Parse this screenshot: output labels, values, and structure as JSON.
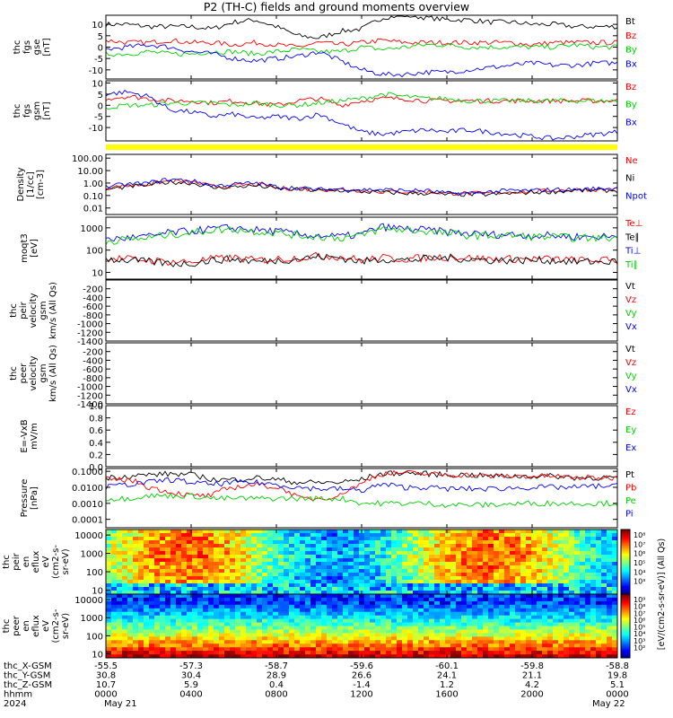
{
  "title": "P2 (TH-C) fields and ground moments overview",
  "colors": {
    "black": "#000000",
    "red": "#ff0000",
    "green": "#00d000",
    "blue": "#0000ff",
    "yellow": "#ffff00",
    "axis": "#000000"
  },
  "chart_data": [
    {
      "type": "line",
      "panel": "fgs-gse",
      "ylabel": [
        "thc",
        "fgs",
        "gse",
        "[nT]"
      ],
      "yticks": [
        "10",
        "5",
        "0",
        "-5",
        "-10"
      ],
      "ylim": [
        -14,
        14
      ],
      "series": [
        {
          "name": "Bt",
          "color": "black",
          "values": [
            10,
            10,
            9,
            9,
            9,
            8,
            11,
            12,
            9,
            5,
            4,
            7,
            8,
            13,
            14,
            13,
            12,
            12,
            11,
            11,
            10,
            10,
            9,
            9,
            9
          ]
        },
        {
          "name": "Bz",
          "color": "red",
          "values": [
            3,
            2,
            2,
            3,
            2,
            2,
            1,
            2,
            1,
            0,
            2,
            1,
            2,
            3,
            2,
            2,
            2,
            2,
            2,
            2,
            1,
            2,
            2,
            2,
            2
          ]
        },
        {
          "name": "By",
          "color": "green",
          "values": [
            -3,
            -3,
            -2,
            -3,
            -3,
            -2,
            -2,
            -3,
            -2,
            -1,
            -2,
            -2,
            0,
            -1,
            0,
            1,
            1,
            0,
            0,
            0,
            0,
            0,
            1,
            0,
            0
          ]
        },
        {
          "name": "Bx",
          "color": "blue",
          "values": [
            -1,
            0,
            1,
            0,
            -2,
            -3,
            -5,
            -6,
            -5,
            -4,
            -2,
            -6,
            -10,
            -12,
            -12,
            -11,
            -11,
            -10,
            -9,
            -8,
            -7,
            -8,
            -8,
            -7,
            -7
          ]
        }
      ],
      "legend": [
        "Bt",
        "Bz",
        "By",
        "Bx"
      ]
    },
    {
      "type": "line",
      "panel": "fgs-gsm",
      "ylabel": [
        "thc",
        "fgs",
        "gsm",
        "[nT]"
      ],
      "yticks": [
        "10",
        "5",
        "0",
        "-5",
        "-10"
      ],
      "ylim": [
        -16,
        11
      ],
      "series": [
        {
          "name": "Bz",
          "color": "red",
          "values": [
            3,
            4,
            3,
            2,
            2,
            1,
            2,
            1,
            0,
            2,
            3,
            0,
            2,
            3,
            3,
            2,
            2,
            2,
            2,
            2,
            2,
            2,
            2,
            2,
            2
          ]
        },
        {
          "name": "By",
          "color": "green",
          "values": [
            -1,
            0,
            0,
            1,
            1,
            1,
            0,
            1,
            0,
            0,
            1,
            2,
            3,
            5,
            4,
            3,
            3,
            2,
            2,
            2,
            2,
            2,
            2,
            2,
            2
          ]
        },
        {
          "name": "Bx",
          "color": "blue",
          "values": [
            5,
            6,
            4,
            -2,
            -3,
            -5,
            -4,
            -6,
            -5,
            -6,
            -4,
            -8,
            -12,
            -13,
            -12,
            -11,
            -12,
            -11,
            -12,
            -13,
            -14,
            -15,
            -14,
            -13,
            -12
          ]
        }
      ],
      "legend": [
        "Bz",
        "By",
        "Bx"
      ]
    },
    {
      "type": "line",
      "panel": "density",
      "yscale": "log",
      "ylabel": [
        "Density",
        "[1/cc]",
        "[cm-3]"
      ],
      "yticks": [
        "100.00",
        "10.00",
        "1.00",
        "0.10",
        "0.01"
      ],
      "ylim": [
        0.003,
        200
      ],
      "series": [
        {
          "name": "Ne",
          "color": "red",
          "values": [
            0.4,
            0.6,
            0.8,
            1.5,
            1.2,
            0.5,
            0.6,
            0.8,
            0.4,
            0.35,
            0.3,
            0.3,
            0.25,
            0.2,
            0.2,
            0.2,
            0.15,
            0.15,
            0.15,
            0.2,
            0.2,
            0.25,
            0.3,
            0.3,
            0.3
          ]
        },
        {
          "name": "Ni",
          "color": "black",
          "values": [
            0.3,
            0.5,
            0.7,
            1.2,
            1.0,
            0.4,
            0.5,
            0.6,
            0.35,
            0.3,
            0.25,
            0.25,
            0.2,
            0.18,
            0.15,
            0.15,
            0.12,
            0.12,
            0.12,
            0.15,
            0.18,
            0.2,
            0.25,
            0.25,
            0.25
          ]
        },
        {
          "name": "Npot",
          "color": "blue",
          "values": [
            0.5,
            0.8,
            1.0,
            2.0,
            1.5,
            0.6,
            0.8,
            1.0,
            0.5,
            0.4,
            0.3,
            0.35,
            0.3,
            0.3,
            0.25,
            0.25,
            0.15,
            0.15,
            0.2,
            0.25,
            0.25,
            0.3,
            0.3,
            0.35,
            0.4
          ]
        }
      ],
      "legend": [
        "Ne",
        "Ni",
        "Npot"
      ]
    },
    {
      "type": "line",
      "panel": "temperature",
      "yscale": "log",
      "ylabel": [
        "moqt3",
        "[eV]"
      ],
      "yticks": [
        "1000",
        "100",
        "10"
      ],
      "ylim": [
        5,
        3000
      ],
      "series": [
        {
          "name": "Te⊥",
          "color": "red",
          "values": [
            45,
            40,
            35,
            30,
            30,
            40,
            45,
            35,
            40,
            45,
            55,
            50,
            35,
            45,
            40,
            45,
            50,
            45,
            40,
            40,
            40,
            40,
            35,
            35,
            35
          ]
        },
        {
          "name": "Te∥",
          "color": "black",
          "values": [
            40,
            35,
            30,
            25,
            25,
            35,
            40,
            30,
            35,
            40,
            50,
            45,
            30,
            40,
            35,
            40,
            45,
            40,
            35,
            35,
            35,
            35,
            30,
            30,
            30
          ]
        },
        {
          "name": "Ti⊥",
          "color": "blue",
          "values": [
            300,
            350,
            400,
            600,
            700,
            900,
            1000,
            800,
            700,
            500,
            450,
            400,
            500,
            1100,
            900,
            800,
            650,
            550,
            500,
            500,
            450,
            450,
            400,
            400,
            400
          ]
        },
        {
          "name": "Ti∥",
          "color": "green",
          "values": [
            250,
            300,
            350,
            500,
            600,
            800,
            850,
            700,
            600,
            450,
            400,
            350,
            450,
            900,
            800,
            700,
            550,
            450,
            450,
            450,
            400,
            400,
            350,
            350,
            350
          ]
        }
      ],
      "legend": [
        "Te⊥",
        "Te∥",
        "Ti⊥",
        "Ti∥"
      ]
    },
    {
      "type": "line",
      "panel": "peir-velocity",
      "ylabel": [
        "thc",
        "peir",
        "velocity",
        "gsm",
        "km/s (All Qs)"
      ],
      "yticks": [
        "-200",
        "-400",
        "-600",
        "-800",
        "-1000",
        "-1200",
        "-1400"
      ],
      "ylim": [
        -1400,
        0
      ],
      "series": [],
      "legend": [
        "Vt",
        "Vz",
        "Vy",
        "Vx"
      ]
    },
    {
      "type": "line",
      "panel": "peer-velocity",
      "ylabel": [
        "thc",
        "peer",
        "velocity",
        "gsm",
        "km/s (All Qs)"
      ],
      "yticks": [
        "-200",
        "-400",
        "-600",
        "-800",
        "-1000",
        "-1200",
        "-1400"
      ],
      "ylim": [
        -1400,
        0
      ],
      "series": [],
      "legend": [
        "Vt",
        "Vz",
        "Vy",
        "Vx"
      ]
    },
    {
      "type": "line",
      "panel": "efield",
      "ylabel": [
        "E=-VxB",
        "mV/m"
      ],
      "yticks": [
        "1.0",
        "0.8",
        "0.6",
        "0.4",
        "0.2",
        "0.0"
      ],
      "ylim": [
        0,
        1
      ],
      "series": [],
      "legend": [
        "Ez",
        "Ey",
        "Ex"
      ]
    },
    {
      "type": "line",
      "panel": "pressure",
      "yscale": "log",
      "ylabel": [
        "Pressure",
        "[nPa]"
      ],
      "yticks": [
        "0.1000",
        "0.0100",
        "0.0010",
        "0.0001"
      ],
      "ylim": [
        3e-05,
        0.15
      ],
      "series": [
        {
          "name": "Pt",
          "color": "black",
          "values": [
            0.04,
            0.05,
            0.06,
            0.07,
            0.06,
            0.03,
            0.03,
            0.04,
            0.03,
            0.02,
            0.02,
            0.02,
            0.03,
            0.07,
            0.08,
            0.07,
            0.06,
            0.06,
            0.05,
            0.05,
            0.05,
            0.05,
            0.04,
            0.04,
            0.04
          ]
        },
        {
          "name": "Pb",
          "color": "red",
          "values": [
            0.03,
            0.03,
            0.01,
            0.005,
            0.003,
            0.003,
            0.01,
            0.015,
            0.01,
            0.002,
            0.002,
            0.003,
            0.015,
            0.07,
            0.08,
            0.07,
            0.06,
            0.06,
            0.05,
            0.05,
            0.05,
            0.05,
            0.04,
            0.04,
            0.04
          ]
        },
        {
          "name": "Pe",
          "color": "green",
          "values": [
            0.002,
            0.002,
            0.003,
            0.003,
            0.003,
            0.002,
            0.002,
            0.002,
            0.002,
            0.002,
            0.002,
            0.002,
            0.001,
            0.001,
            0.001,
            0.001,
            0.0008,
            0.0008,
            0.0008,
            0.0009,
            0.001,
            0.001,
            0.001,
            0.001,
            0.001
          ]
        },
        {
          "name": "Pi",
          "color": "blue",
          "values": [
            0.01,
            0.015,
            0.02,
            0.03,
            0.02,
            0.015,
            0.02,
            0.02,
            0.015,
            0.01,
            0.008,
            0.008,
            0.006,
            0.015,
            0.01,
            0.01,
            0.008,
            0.008,
            0.008,
            0.009,
            0.01,
            0.01,
            0.01,
            0.012,
            0.012
          ]
        }
      ],
      "legend": [
        "Pt",
        "Pb",
        "Pe",
        "Pi"
      ]
    },
    {
      "type": "heatmap",
      "panel": "peir-eflux",
      "yscale": "log",
      "ylabel": [
        "thc",
        "peir",
        "en",
        "eflux",
        "eV",
        "(cm2-s-",
        "sr-eV)"
      ],
      "yticks": [
        "10000",
        "1000",
        "100",
        "10"
      ],
      "colorbar": {
        "label": "[eV/(cm2-s-sr-eV)] (All Qs)",
        "ticks": [
          "10⁸",
          "10⁷",
          "10⁶",
          "10⁵",
          "10⁴",
          "10³"
        ]
      }
    },
    {
      "type": "heatmap",
      "panel": "peer-eflux",
      "yscale": "log",
      "ylabel": [
        "thc",
        "peer",
        "en",
        "eflux",
        "eV",
        "(cm2-s-",
        "sr-eV)"
      ],
      "yticks": [
        "10000",
        "1000",
        "100",
        "10"
      ],
      "colorbar": {
        "label": "[eV/(cm2-s-sr-eV)] (All Qs)",
        "ticks": [
          "10⁹",
          "10⁸",
          "10⁷",
          "10⁶",
          "10⁵",
          "10⁴",
          "10³",
          "10²"
        ]
      }
    }
  ],
  "xaxis": {
    "rows": [
      {
        "label": "thc_X-GSM",
        "values": [
          "-55.5",
          "-57.3",
          "-58.7",
          "-59.6",
          "-60.1",
          "-59.8",
          "-58.8"
        ]
      },
      {
        "label": "thc_Y-GSM",
        "values": [
          "30.8",
          "30.4",
          "28.9",
          "26.6",
          "24.1",
          "21.1",
          "19.8"
        ]
      },
      {
        "label": "thc_Z-GSM",
        "values": [
          "10.7",
          "5.9",
          "0.4",
          "-1.4",
          "1.2",
          "4.2",
          "5.1"
        ]
      },
      {
        "label": "hhmm",
        "values": [
          "0000",
          "0400",
          "0800",
          "1200",
          "1600",
          "2000",
          "0000"
        ]
      },
      {
        "label": "2024",
        "values": [
          "May 21",
          "",
          "",
          "",
          "",
          "",
          "May 22"
        ]
      }
    ]
  }
}
